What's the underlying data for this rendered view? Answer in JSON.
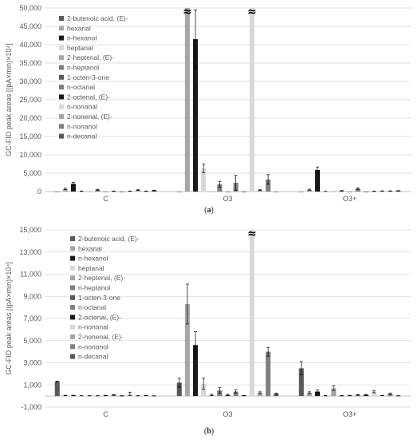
{
  "colors": {
    "series": [
      "#595959",
      "#a6a6a6",
      "#1a1a1a",
      "#d9d9d9",
      "#a6a6a6",
      "#7f7f7f",
      "#595959",
      "#7f7f7f",
      "#1a1a1a",
      "#d9d9d9",
      "#a6a6a6",
      "#7f7f7f",
      "#595959"
    ],
    "gridline": "#d9d9d9",
    "text": "#595959"
  },
  "break_marker": "≈",
  "panels": [
    {
      "caption_prefix": "(",
      "caption_letter": "a",
      "caption_suffix": ")"
    },
    {
      "caption_prefix": "(",
      "caption_letter": "b",
      "caption_suffix": ")"
    }
  ],
  "chart_data": [
    {
      "type": "bar",
      "ylabel": "GC-FID peak areas [(pA×min)×10⁴]",
      "categories": [
        "C",
        "O3",
        "O3+"
      ],
      "ylim": [
        0,
        50000
      ],
      "yticks": [
        0,
        5000,
        10000,
        15000,
        20000,
        25000,
        30000,
        35000,
        40000,
        45000,
        50000
      ],
      "yticklabels": [
        "0",
        "5,000",
        "10,000",
        "15,000",
        "20,000",
        "25,000",
        "30,000",
        "35,000",
        "40,000",
        "45,000",
        "50,000"
      ],
      "legend_position": "top-left",
      "series": [
        {
          "name": "2-butenoic acid, (E)-",
          "values": [
            0,
            0,
            0
          ],
          "errors": [
            0,
            0,
            0
          ]
        },
        {
          "name": "hexanal",
          "values": [
            700,
            50000,
            500
          ],
          "errors": [
            200,
            0,
            150
          ],
          "broken": [
            false,
            true,
            false
          ]
        },
        {
          "name": "n-hexanol",
          "values": [
            2100,
            41500,
            5900
          ],
          "errors": [
            400,
            8000,
            800
          ]
        },
        {
          "name": "heptanal",
          "values": [
            100,
            6300,
            50
          ],
          "errors": [
            50,
            1200,
            30
          ]
        },
        {
          "name": "2-heptenal, (E)-",
          "values": [
            50,
            0,
            0
          ],
          "errors": [
            0,
            0,
            0
          ]
        },
        {
          "name": "n-heptanol",
          "values": [
            500,
            2000,
            200
          ],
          "errors": [
            120,
            800,
            80
          ]
        },
        {
          "name": "1-octen-3-one",
          "values": [
            0,
            0,
            0
          ],
          "errors": [
            0,
            0,
            0
          ]
        },
        {
          "name": "n-octanal",
          "values": [
            100,
            2400,
            800
          ],
          "errors": [
            50,
            2000,
            200
          ]
        },
        {
          "name": "2-octenal, (E)-",
          "values": [
            0,
            0,
            0
          ],
          "errors": [
            0,
            0,
            0
          ]
        },
        {
          "name": "n-nonanal",
          "values": [
            100,
            50000,
            100
          ],
          "errors": [
            50,
            0,
            50
          ],
          "broken": [
            false,
            true,
            false
          ]
        },
        {
          "name": "2-nonenal, (E)-",
          "values": [
            400,
            400,
            150
          ],
          "errors": [
            100,
            100,
            50
          ]
        },
        {
          "name": "n-nonanol",
          "values": [
            100,
            3300,
            150
          ],
          "errors": [
            50,
            1300,
            50
          ]
        },
        {
          "name": "n-decanal",
          "values": [
            300,
            0,
            200
          ],
          "errors": [
            80,
            0,
            60
          ]
        }
      ]
    },
    {
      "type": "bar",
      "ylabel": "GC-FID peak areas [(pA×min)×10⁴]",
      "categories": [
        "C",
        "O3",
        "O3+"
      ],
      "ylim": [
        -1000,
        15000
      ],
      "yticks": [
        -1000,
        1000,
        3000,
        5000,
        7000,
        9000,
        11000,
        13000,
        15000
      ],
      "yticklabels": [
        "-1,000",
        "1,000",
        "3,000",
        "5,000",
        "7,000",
        "9,000",
        "11,000",
        "13,000",
        "15,000"
      ],
      "legend_position": "top-left",
      "series": [
        {
          "name": "2-butenoic acid, (E)-",
          "values": [
            1300,
            1200,
            2500
          ],
          "errors": [
            50,
            400,
            600
          ]
        },
        {
          "name": "hexanal",
          "values": [
            50,
            8300,
            300
          ],
          "errors": [
            20,
            1800,
            80
          ]
        },
        {
          "name": "n-hexanol",
          "values": [
            50,
            4600,
            400
          ],
          "errors": [
            20,
            1200,
            150
          ]
        },
        {
          "name": "heptanal",
          "values": [
            30,
            1100,
            30
          ],
          "errors": [
            10,
            500,
            20
          ]
        },
        {
          "name": "2-heptenal, (E)-",
          "values": [
            30,
            100,
            700
          ],
          "errors": [
            10,
            50,
            200
          ]
        },
        {
          "name": "n-heptanol",
          "values": [
            30,
            500,
            30
          ],
          "errors": [
            10,
            250,
            20
          ]
        },
        {
          "name": "1-octen-3-one",
          "values": [
            50,
            100,
            50
          ],
          "errors": [
            20,
            50,
            20
          ]
        },
        {
          "name": "n-octanal",
          "values": [
            100,
            400,
            100
          ],
          "errors": [
            30,
            150,
            30
          ]
        },
        {
          "name": "2-octenal, (E)-",
          "values": [
            30,
            50,
            100
          ],
          "errors": [
            10,
            20,
            40
          ]
        },
        {
          "name": "n-nonanal",
          "values": [
            200,
            15000,
            400
          ],
          "errors": [
            150,
            0,
            100
          ],
          "broken": [
            false,
            true,
            false
          ]
        },
        {
          "name": "2-nonenal, (E)-",
          "values": [
            30,
            300,
            50
          ],
          "errors": [
            10,
            80,
            20
          ]
        },
        {
          "name": "n-nonanol",
          "values": [
            50,
            4000,
            200
          ],
          "errors": [
            20,
            400,
            50
          ]
        },
        {
          "name": "n-decanal",
          "values": [
            20,
            200,
            30
          ],
          "errors": [
            10,
            60,
            10
          ]
        }
      ]
    }
  ]
}
